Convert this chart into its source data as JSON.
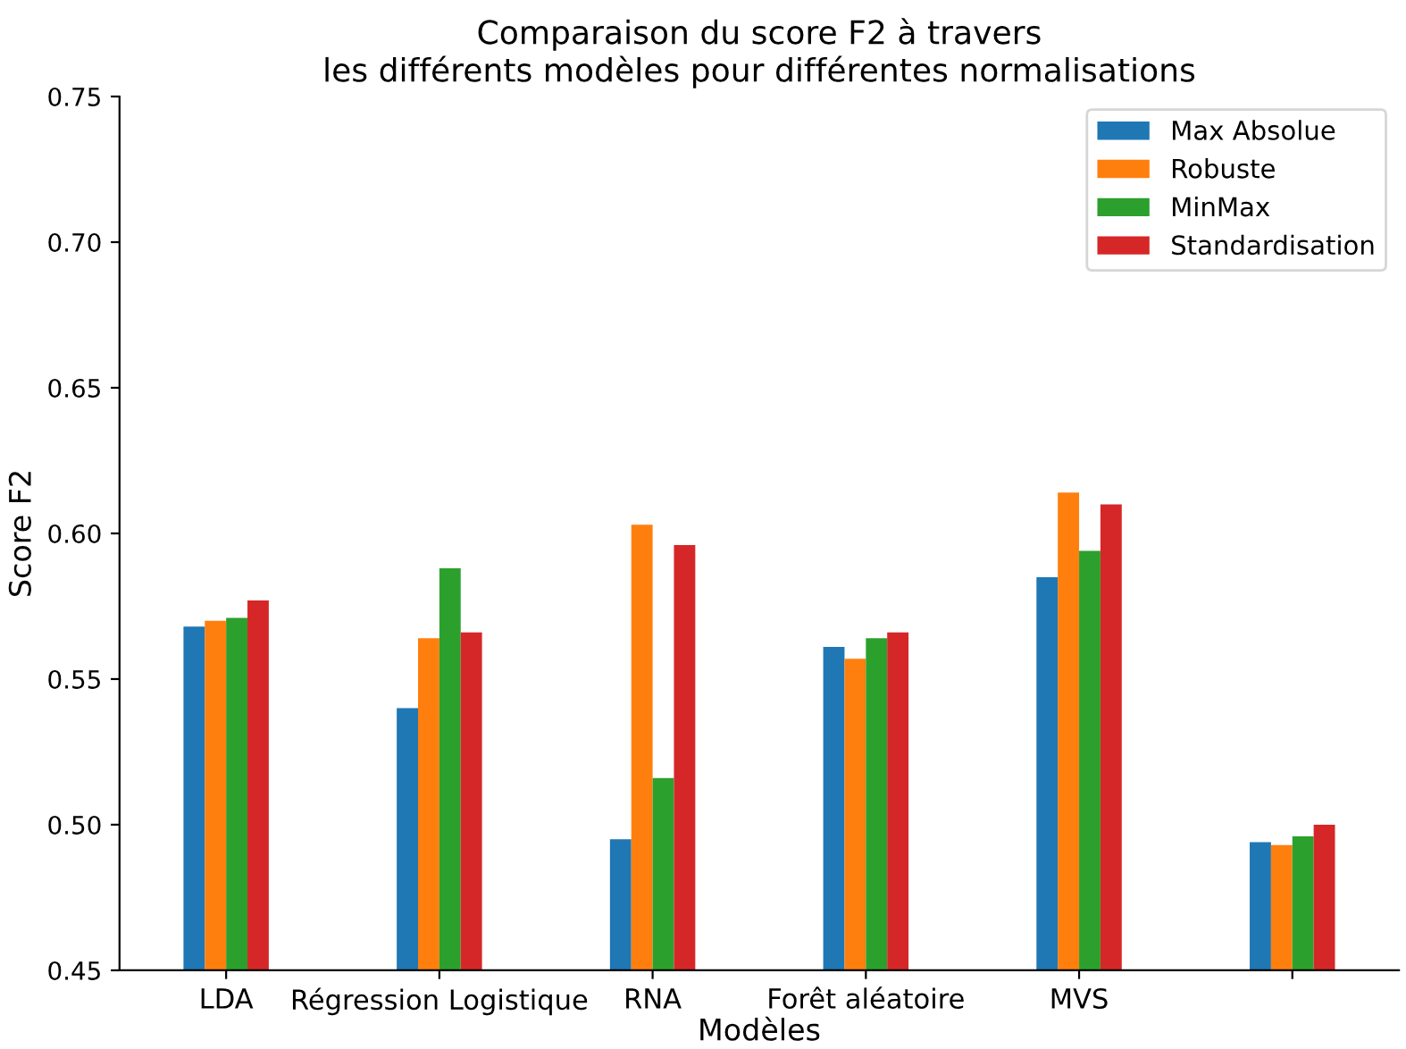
{
  "chart_data": {
    "type": "bar",
    "title": "Comparaison du score F2 à travers\nles différents modèles pour différentes normalisations",
    "xlabel": "Modèles",
    "ylabel": "Score F2",
    "categories": [
      "LDA",
      "Régression Logistique",
      "RNA",
      "Forêt aléatoire",
      "MVS",
      null
    ],
    "series": [
      {
        "name": "Max Absolue",
        "color": "#1f77b4",
        "values": [
          0.568,
          0.54,
          0.495,
          0.561,
          0.585,
          0.494
        ]
      },
      {
        "name": "Robuste",
        "color": "#ff7f0e",
        "values": [
          0.57,
          0.564,
          0.603,
          0.557,
          0.614,
          0.493
        ]
      },
      {
        "name": "MinMax",
        "color": "#2ca02c",
        "values": [
          0.571,
          0.588,
          0.516,
          0.564,
          0.594,
          0.496
        ]
      },
      {
        "name": "Standardisation",
        "color": "#d62728",
        "values": [
          0.577,
          0.566,
          0.596,
          0.566,
          0.61,
          0.5
        ]
      }
    ],
    "ylim": [
      0.45,
      0.75
    ],
    "yticks": [
      {
        "value": 0.45,
        "label": "0.45"
      },
      {
        "value": 0.5,
        "label": "0.50"
      },
      {
        "value": 0.55,
        "label": "0.55"
      },
      {
        "value": 0.6,
        "label": "0.60"
      },
      {
        "value": 0.65,
        "label": "0.65"
      },
      {
        "value": 0.7,
        "label": "0.70"
      },
      {
        "value": 0.75,
        "label": "0.75"
      }
    ],
    "legend": "top right"
  }
}
